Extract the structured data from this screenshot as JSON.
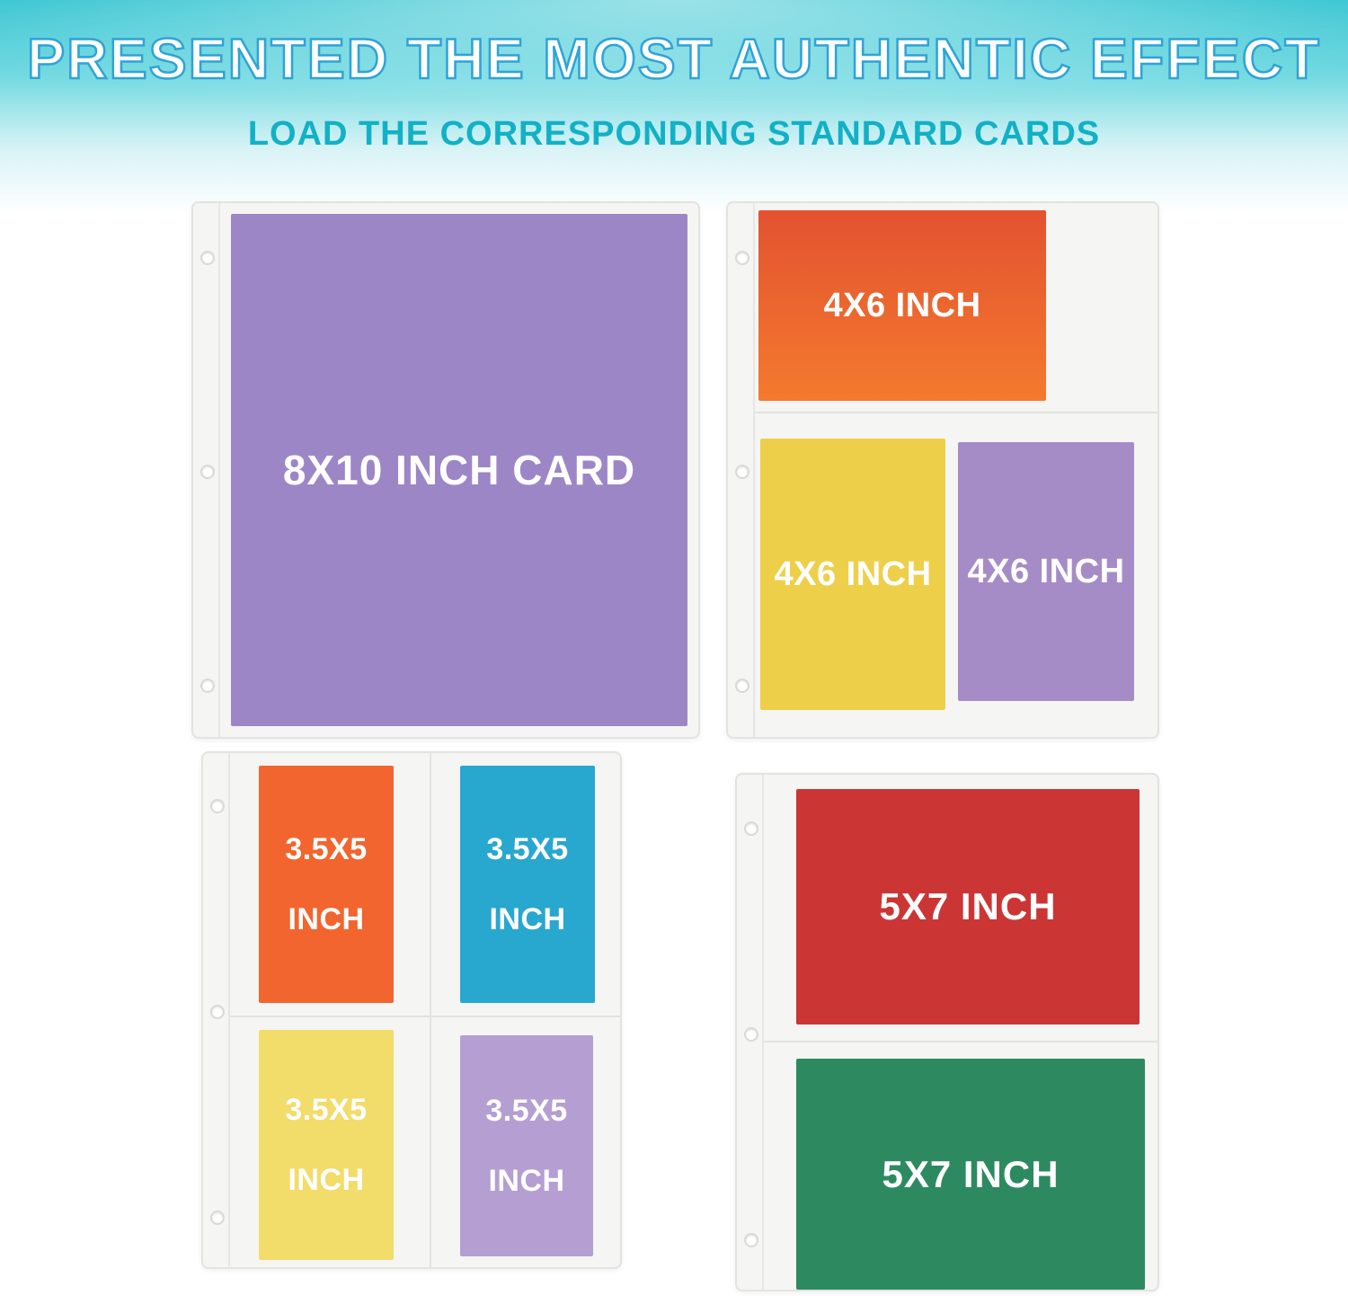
{
  "header": {
    "title": "PRESENTED THE MOST AUTHENTIC EFFECT",
    "subtitle": "LOAD THE CORRESPONDING STANDARD CARDS"
  },
  "palette": {
    "gradient_top_teal": "#22bfcd",
    "title_text": "#ffffff",
    "title_outline": "#2fa3d6",
    "subtitle_text": "#12b1c5",
    "sleeve_background": "#f5f5f3",
    "sleeve_border": "#e3e3e1"
  },
  "pages": {
    "p8x10": {
      "card": {
        "label": "8X10 INCH CARD",
        "color": "#9d86c6"
      }
    },
    "p4x6": {
      "top_card": {
        "label": "4X6 INCH",
        "color": "linear-gradient(180deg,#e35230,#f47a2e)"
      },
      "left_card": {
        "label": "4X6 INCH",
        "color": "#eecf4a"
      },
      "right_card": {
        "label": "4X6 INCH",
        "color": "#a68cc6"
      }
    },
    "p35x5": {
      "cards": [
        {
          "label": "3.5X5 INCH",
          "color": "#f2652e"
        },
        {
          "label": "3.5X5 INCH",
          "color": "#28a7cf"
        },
        {
          "label": "3.5X5 INCH",
          "color": "#f2dc6a"
        },
        {
          "label": "3.5X5 INCH",
          "color": "#b59ed2"
        }
      ]
    },
    "p5x7": {
      "top_card": {
        "label": "5X7 INCH",
        "color": "#cb3534"
      },
      "bottom_card": {
        "label": "5X7 INCH",
        "color": "#2d8a60"
      }
    }
  }
}
